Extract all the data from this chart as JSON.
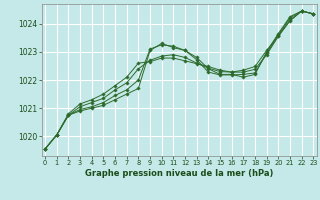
{
  "bg_color": "#c5e8e8",
  "grid_color": "#ffffff",
  "line_color": "#2d6b2d",
  "marker_color": "#2d6b2d",
  "xlabel": "Graphe pression niveau de la mer (hPa)",
  "xlabel_color": "#1a4d1a",
  "ylim": [
    1019.3,
    1024.7
  ],
  "yticks": [
    1020,
    1021,
    1022,
    1023,
    1024
  ],
  "xlim": [
    -0.3,
    23.3
  ],
  "xticks": [
    0,
    1,
    2,
    3,
    4,
    5,
    6,
    7,
    8,
    9,
    10,
    11,
    12,
    13,
    14,
    15,
    16,
    17,
    18,
    19,
    20,
    21,
    22,
    23
  ],
  "series": [
    [
      1019.55,
      1020.05,
      1020.75,
      1020.9,
      1021.0,
      1021.1,
      1021.3,
      1021.5,
      1021.7,
      1023.05,
      1023.3,
      1023.15,
      1023.05,
      1022.8,
      1022.4,
      1022.2,
      1022.2,
      1022.1,
      1022.2,
      1023.0,
      1023.65,
      1024.25,
      1024.45,
      1024.35
    ],
    [
      1019.55,
      1020.05,
      1020.75,
      1020.95,
      1021.05,
      1021.2,
      1021.45,
      1021.65,
      1022.0,
      1023.1,
      1023.25,
      1023.2,
      1023.05,
      1022.72,
      1022.28,
      1022.18,
      1022.18,
      1022.2,
      1022.25,
      1022.95,
      1023.6,
      1024.2,
      1024.45,
      1024.35
    ],
    [
      1019.55,
      1020.05,
      1020.75,
      1021.05,
      1021.2,
      1021.35,
      1021.65,
      1021.9,
      1022.4,
      1022.7,
      1022.85,
      1022.9,
      1022.8,
      1022.6,
      1022.42,
      1022.3,
      1022.28,
      1022.28,
      1022.38,
      1022.9,
      1023.55,
      1024.1,
      1024.45,
      1024.35
    ],
    [
      1019.55,
      1020.05,
      1020.8,
      1021.15,
      1021.3,
      1021.5,
      1021.8,
      1022.1,
      1022.6,
      1022.65,
      1022.78,
      1022.78,
      1022.68,
      1022.58,
      1022.48,
      1022.35,
      1022.28,
      1022.35,
      1022.48,
      1023.05,
      1023.58,
      1024.12,
      1024.45,
      1024.35
    ]
  ]
}
